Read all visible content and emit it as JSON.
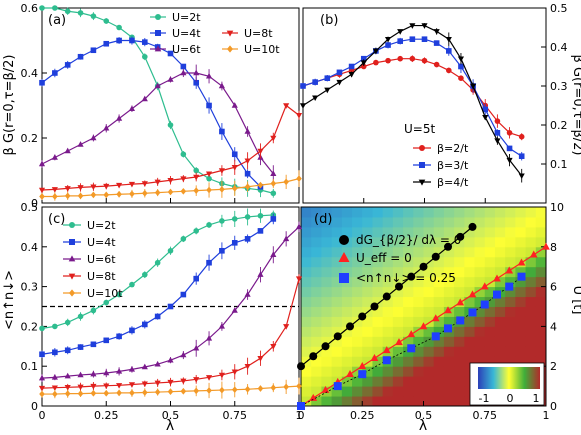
{
  "panels_text": {
    "a": "(a)",
    "b": "(b)",
    "c": "(c)",
    "d": "(d)"
  },
  "chart_data": [
    {
      "panel": "(a)",
      "type": "line",
      "ylabel": "β G(r=0,τ=β/2)",
      "xlim": [
        0,
        1
      ],
      "ylim": [
        0,
        0.6
      ],
      "yticks": [
        "0",
        "0.2",
        "0.4",
        "0.6"
      ],
      "legend_position": "top-right",
      "series": [
        {
          "name": "U=2t",
          "color": "#2ebd8f",
          "marker": "circle",
          "x": [
            0,
            0.05,
            0.1,
            0.15,
            0.2,
            0.25,
            0.3,
            0.35,
            0.4,
            0.45,
            0.5,
            0.55,
            0.6,
            0.65,
            0.7,
            0.75,
            0.8,
            0.85,
            0.9
          ],
          "y": [
            0.6,
            0.6,
            0.59,
            0.585,
            0.575,
            0.56,
            0.54,
            0.51,
            0.45,
            0.36,
            0.24,
            0.15,
            0.1,
            0.075,
            0.06,
            0.05,
            0.045,
            0.04,
            0.03
          ]
        },
        {
          "name": "U=4t",
          "color": "#1f3fdc",
          "marker": "square",
          "x": [
            0,
            0.05,
            0.1,
            0.15,
            0.2,
            0.25,
            0.3,
            0.35,
            0.4,
            0.45,
            0.5,
            0.55,
            0.6,
            0.65,
            0.7,
            0.75,
            0.8,
            0.85
          ],
          "y": [
            0.37,
            0.4,
            0.425,
            0.45,
            0.47,
            0.49,
            0.5,
            0.5,
            0.495,
            0.48,
            0.46,
            0.42,
            0.37,
            0.3,
            0.22,
            0.15,
            0.09,
            0.05
          ]
        },
        {
          "name": "U=6t",
          "color": "#7a1a8c",
          "marker": "triangle-up",
          "x": [
            0,
            0.05,
            0.1,
            0.15,
            0.2,
            0.25,
            0.3,
            0.35,
            0.4,
            0.45,
            0.5,
            0.55,
            0.6,
            0.65,
            0.7,
            0.75,
            0.8,
            0.85,
            0.9
          ],
          "y": [
            0.12,
            0.14,
            0.16,
            0.18,
            0.2,
            0.23,
            0.26,
            0.29,
            0.32,
            0.36,
            0.38,
            0.4,
            0.4,
            0.39,
            0.36,
            0.3,
            0.22,
            0.14,
            0.09
          ]
        },
        {
          "name": "U=8t",
          "color": "#e0201d",
          "marker": "triangle-down",
          "x": [
            0,
            0.05,
            0.1,
            0.15,
            0.2,
            0.25,
            0.3,
            0.35,
            0.4,
            0.45,
            0.5,
            0.55,
            0.6,
            0.65,
            0.7,
            0.75,
            0.8,
            0.85,
            0.9,
            0.95,
            1.0
          ],
          "y": [
            0.04,
            0.042,
            0.045,
            0.048,
            0.05,
            0.052,
            0.055,
            0.058,
            0.06,
            0.065,
            0.07,
            0.075,
            0.08,
            0.09,
            0.1,
            0.11,
            0.13,
            0.16,
            0.2,
            0.3,
            0.27
          ]
        },
        {
          "name": "U=10t",
          "color": "#f39a28",
          "marker": "diamond",
          "x": [
            0,
            0.05,
            0.1,
            0.15,
            0.2,
            0.25,
            0.3,
            0.35,
            0.4,
            0.45,
            0.5,
            0.55,
            0.6,
            0.65,
            0.7,
            0.75,
            0.8,
            0.85,
            0.9,
            0.95,
            1.0
          ],
          "y": [
            0.02,
            0.02,
            0.022,
            0.022,
            0.025,
            0.025,
            0.027,
            0.028,
            0.03,
            0.032,
            0.034,
            0.036,
            0.038,
            0.04,
            0.042,
            0.045,
            0.05,
            0.055,
            0.06,
            0.065,
            0.075
          ]
        }
      ]
    },
    {
      "panel": "(b)",
      "type": "line",
      "ylabel": "β G(r=0,τ=β/2)",
      "xlim": [
        0,
        1
      ],
      "ylim": [
        0,
        0.5
      ],
      "yticks": [
        "0.1",
        "0.2",
        "0.3",
        "0.4",
        "0.5"
      ],
      "annotation": "U=5t",
      "legend_position": "center-right",
      "series": [
        {
          "name": "β=2/t",
          "color": "#e0201d",
          "marker": "circle",
          "x": [
            0,
            0.05,
            0.1,
            0.15,
            0.2,
            0.25,
            0.3,
            0.35,
            0.4,
            0.45,
            0.5,
            0.55,
            0.6,
            0.65,
            0.7,
            0.75,
            0.8,
            0.85,
            0.9
          ],
          "y": [
            0.3,
            0.31,
            0.32,
            0.33,
            0.34,
            0.35,
            0.36,
            0.365,
            0.37,
            0.37,
            0.365,
            0.355,
            0.34,
            0.32,
            0.29,
            0.25,
            0.21,
            0.18,
            0.17
          ]
        },
        {
          "name": "β=3/t",
          "color": "#1f3fdc",
          "marker": "square",
          "x": [
            0,
            0.05,
            0.1,
            0.15,
            0.2,
            0.25,
            0.3,
            0.35,
            0.4,
            0.45,
            0.5,
            0.55,
            0.6,
            0.65,
            0.7,
            0.75,
            0.8,
            0.85,
            0.9
          ],
          "y": [
            0.3,
            0.31,
            0.32,
            0.335,
            0.35,
            0.37,
            0.39,
            0.405,
            0.415,
            0.42,
            0.42,
            0.41,
            0.39,
            0.35,
            0.3,
            0.24,
            0.18,
            0.14,
            0.12
          ]
        },
        {
          "name": "β=4/t",
          "color": "#000000",
          "marker": "triangle-down",
          "x": [
            0,
            0.05,
            0.1,
            0.15,
            0.2,
            0.25,
            0.3,
            0.35,
            0.4,
            0.45,
            0.5,
            0.55,
            0.6,
            0.65,
            0.7,
            0.75,
            0.8,
            0.85,
            0.9
          ],
          "y": [
            0.25,
            0.27,
            0.29,
            0.31,
            0.33,
            0.36,
            0.39,
            0.42,
            0.44,
            0.455,
            0.455,
            0.44,
            0.42,
            0.37,
            0.3,
            0.22,
            0.16,
            0.11,
            0.07
          ]
        }
      ]
    },
    {
      "panel": "(c)",
      "type": "line",
      "xlabel": "λ",
      "ylabel": "<n↑n↓>",
      "xlim": [
        0,
        1
      ],
      "ylim": [
        0,
        0.5
      ],
      "xticks": [
        "0",
        "0.25",
        "0.5",
        "0.75",
        "1"
      ],
      "yticks": [
        "0",
        "0.1",
        "0.2",
        "0.3",
        "0.4",
        "0.5"
      ],
      "dashed_line": 0.25,
      "legend_position": "top-left",
      "series": [
        {
          "name": "U=2t",
          "color": "#2ebd8f",
          "marker": "circle",
          "x": [
            0,
            0.05,
            0.1,
            0.15,
            0.2,
            0.25,
            0.3,
            0.35,
            0.4,
            0.45,
            0.5,
            0.55,
            0.6,
            0.65,
            0.7,
            0.75,
            0.8,
            0.85,
            0.9
          ],
          "y": [
            0.195,
            0.2,
            0.21,
            0.225,
            0.24,
            0.26,
            0.28,
            0.305,
            0.33,
            0.36,
            0.39,
            0.42,
            0.44,
            0.455,
            0.465,
            0.47,
            0.475,
            0.478,
            0.48
          ]
        },
        {
          "name": "U=4t",
          "color": "#1f3fdc",
          "marker": "square",
          "x": [
            0,
            0.05,
            0.1,
            0.15,
            0.2,
            0.25,
            0.3,
            0.35,
            0.4,
            0.45,
            0.5,
            0.55,
            0.6,
            0.65,
            0.7,
            0.75,
            0.8,
            0.85,
            0.9
          ],
          "y": [
            0.13,
            0.135,
            0.14,
            0.148,
            0.155,
            0.165,
            0.175,
            0.19,
            0.205,
            0.225,
            0.25,
            0.28,
            0.32,
            0.36,
            0.39,
            0.41,
            0.42,
            0.44,
            0.47
          ]
        },
        {
          "name": "U=6t",
          "color": "#7a1a8c",
          "marker": "triangle-up",
          "x": [
            0,
            0.05,
            0.1,
            0.15,
            0.2,
            0.25,
            0.3,
            0.35,
            0.4,
            0.45,
            0.5,
            0.55,
            0.6,
            0.65,
            0.7,
            0.75,
            0.8,
            0.85,
            0.9,
            0.95,
            1.0
          ],
          "y": [
            0.07,
            0.072,
            0.075,
            0.078,
            0.08,
            0.083,
            0.087,
            0.092,
            0.098,
            0.105,
            0.115,
            0.128,
            0.145,
            0.17,
            0.2,
            0.24,
            0.28,
            0.33,
            0.38,
            0.42,
            0.45
          ]
        },
        {
          "name": "U=8t",
          "color": "#e0201d",
          "marker": "triangle-down",
          "x": [
            0,
            0.05,
            0.1,
            0.15,
            0.2,
            0.25,
            0.3,
            0.35,
            0.4,
            0.45,
            0.5,
            0.55,
            0.6,
            0.65,
            0.7,
            0.75,
            0.8,
            0.85,
            0.9,
            0.95,
            1.0
          ],
          "y": [
            0.045,
            0.046,
            0.047,
            0.048,
            0.05,
            0.051,
            0.052,
            0.054,
            0.056,
            0.058,
            0.06,
            0.063,
            0.067,
            0.072,
            0.078,
            0.086,
            0.1,
            0.12,
            0.15,
            0.2,
            0.32
          ]
        },
        {
          "name": "U=10t",
          "color": "#f39a28",
          "marker": "diamond",
          "x": [
            0,
            0.05,
            0.1,
            0.15,
            0.2,
            0.25,
            0.3,
            0.35,
            0.4,
            0.45,
            0.5,
            0.55,
            0.6,
            0.65,
            0.7,
            0.75,
            0.8,
            0.85,
            0.9,
            0.95,
            1.0
          ],
          "y": [
            0.03,
            0.03,
            0.031,
            0.031,
            0.032,
            0.032,
            0.033,
            0.033,
            0.034,
            0.035,
            0.036,
            0.037,
            0.038,
            0.039,
            0.04,
            0.041,
            0.042,
            0.044,
            0.046,
            0.048,
            0.05
          ]
        }
      ]
    },
    {
      "panel": "(d)",
      "type": "heatmap",
      "xlabel": "λ",
      "ylabel": "U [t]",
      "xlim": [
        0,
        1
      ],
      "ylim": [
        0,
        10
      ],
      "xticks": [
        "0",
        "0.25",
        "0.5",
        "0.75",
        "1"
      ],
      "yticks": [
        "0",
        "2",
        "4",
        "6",
        "8",
        "10"
      ],
      "colorbar_ticks": [
        "-1",
        "0",
        "1"
      ],
      "legend": [
        {
          "label": "dG_{β/2}/ dλ = 0",
          "marker": "circle",
          "color": "#000000"
        },
        {
          "label": "U_eff = 0",
          "marker": "triangle-up",
          "color": "#ff2222"
        },
        {
          "label": "<n↑n↓> = 0.25",
          "marker": "square",
          "color": "#1f3fff"
        }
      ],
      "dG_zero": {
        "x": [
          0.0,
          0.05,
          0.1,
          0.15,
          0.2,
          0.25,
          0.3,
          0.35,
          0.4,
          0.45,
          0.5,
          0.55,
          0.6,
          0.65,
          0.7
        ],
        "y": [
          2,
          2.5,
          3,
          3.5,
          4,
          4.5,
          5,
          5.5,
          6,
          6.5,
          7,
          7.5,
          8,
          8.5,
          9
        ]
      },
      "Ueff_zero": {
        "x": [
          0.0,
          0.05,
          0.1,
          0.15,
          0.2,
          0.25,
          0.3,
          0.35,
          0.4,
          0.45,
          0.5,
          0.55,
          0.6,
          0.65,
          0.7,
          0.75,
          0.8,
          0.85,
          0.9,
          0.95,
          1.0
        ],
        "y": [
          0,
          0.4,
          0.8,
          1.2,
          1.6,
          2.0,
          2.4,
          2.8,
          3.2,
          3.6,
          4.0,
          4.4,
          4.8,
          5.2,
          5.6,
          6.0,
          6.4,
          6.8,
          7.2,
          7.6,
          8.0
        ]
      },
      "docc_quarter": {
        "x": [
          0.0,
          0.15,
          0.25,
          0.35,
          0.45,
          0.55,
          0.6,
          0.65,
          0.7,
          0.75,
          0.8,
          0.85,
          0.9
        ],
        "y": [
          0,
          1,
          1.6,
          2.3,
          2.9,
          3.5,
          3.9,
          4.3,
          4.7,
          5.1,
          5.6,
          6.0,
          6.5
        ]
      }
    }
  ]
}
